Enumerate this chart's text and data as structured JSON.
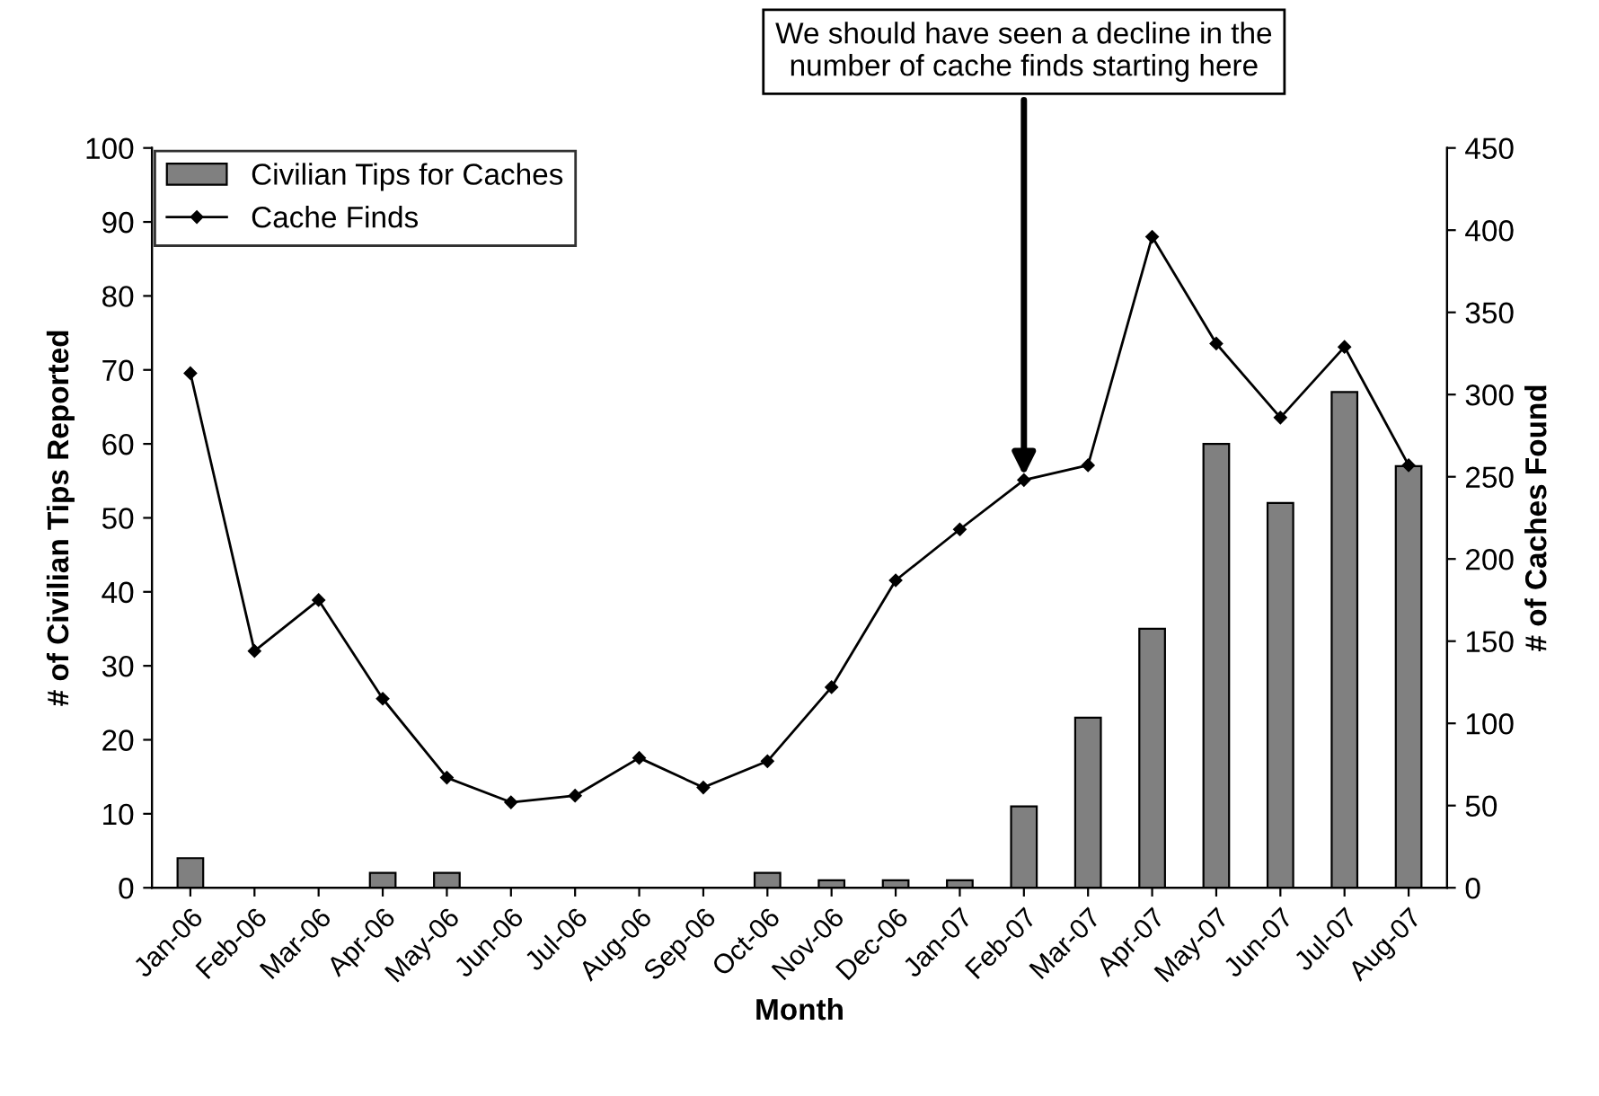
{
  "chart_data": {
    "type": "bar",
    "xlabel": "Month",
    "ylabel": "# of Civilian Tips Reported",
    "y2label": "# of Caches Found",
    "categories": [
      "Jan-06",
      "Feb-06",
      "Mar-06",
      "Apr-06",
      "May-06",
      "Jun-06",
      "Jul-06",
      "Aug-06",
      "Sep-06",
      "Oct-06",
      "Nov-06",
      "Dec-06",
      "Jan-07",
      "Feb-07",
      "Mar-07",
      "Apr-07",
      "May-07",
      "Jun-07",
      "Jul-07",
      "Aug-07"
    ],
    "series": [
      {
        "name": "Civilian Tips for Caches",
        "color": "#808080",
        "values": [
          4,
          0,
          0,
          2,
          2,
          0,
          0,
          0,
          0,
          2,
          1,
          1,
          1,
          11,
          23,
          35,
          60,
          52,
          67,
          57
        ]
      },
      {
        "name": "Cache Finds",
        "type": "line",
        "axis": "y2",
        "color": "#000000",
        "marker": "diamond",
        "values": [
          313,
          144,
          175,
          115,
          67,
          52,
          56,
          79,
          61,
          77,
          122,
          187,
          218,
          248,
          257,
          396,
          331,
          286,
          329,
          257
        ]
      }
    ],
    "ylim": [
      0,
      100
    ],
    "yticks": [
      0,
      10,
      20,
      30,
      40,
      50,
      60,
      70,
      80,
      90,
      100
    ],
    "y2lim": [
      0,
      450
    ],
    "y2ticks": [
      0,
      50,
      100,
      150,
      200,
      250,
      300,
      350,
      400,
      450
    ],
    "legend": "top left",
    "grid": false,
    "annotations": [
      {
        "text": "We should have seen a decline in the\nnumber of cache finds starting here",
        "x": "Feb-07",
        "y": 55
      }
    ]
  }
}
